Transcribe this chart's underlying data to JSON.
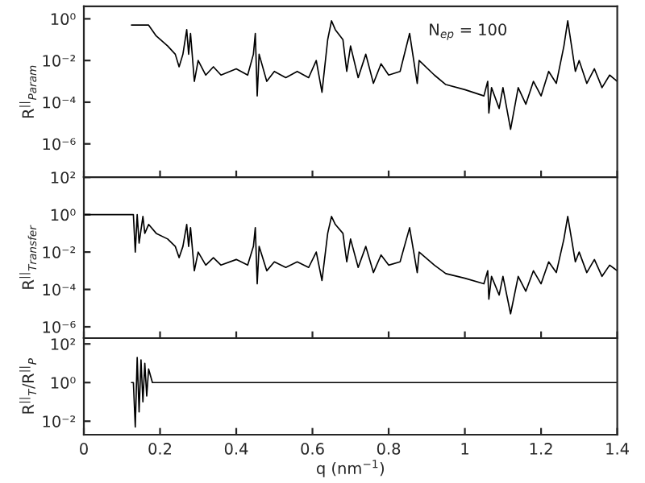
{
  "chart_data": [
    {
      "type": "line",
      "ylabel": "R$^{||}$$_{Param}$",
      "annotations": [
        "N$_{ep}$ = 100"
      ],
      "log": true,
      "tick_labels": "y",
      "xlim": [
        0,
        1.4
      ],
      "xticks": [
        0,
        0.2,
        0.4,
        0.6,
        0.8,
        1,
        1.2,
        1.4
      ],
      "ylim": [
        2.5e-08,
        4
      ],
      "yticks": [
        {
          "value": 1,
          "label": "10⁰"
        },
        {
          "value": 0.01,
          "label": "10⁻²"
        },
        {
          "value": 0.0001,
          "label": "10⁻⁴"
        },
        {
          "value": 1e-06,
          "label": "10⁻⁶"
        }
      ],
      "series": [
        {
          "color": "#000000",
          "x": [
            0.125,
            0.17,
            0.19,
            0.22,
            0.24,
            0.25,
            0.26,
            0.27,
            0.275,
            0.28,
            0.29,
            0.3,
            0.32,
            0.34,
            0.36,
            0.4,
            0.43,
            0.445,
            0.45,
            0.455,
            0.46,
            0.48,
            0.5,
            0.53,
            0.56,
            0.59,
            0.61,
            0.625,
            0.64,
            0.65,
            0.66,
            0.68,
            0.69,
            0.7,
            0.72,
            0.74,
            0.76,
            0.78,
            0.8,
            0.83,
            0.855,
            0.86,
            0.875,
            0.88,
            0.92,
            0.95,
            1.0,
            1.05,
            1.06,
            1.063,
            1.07,
            1.09,
            1.1,
            1.12,
            1.14,
            1.16,
            1.18,
            1.2,
            1.22,
            1.24,
            1.26,
            1.27,
            1.28,
            1.29,
            1.3,
            1.32,
            1.34,
            1.36,
            1.38,
            1.4
          ],
          "values": [
            0.5,
            0.5,
            0.15,
            0.05,
            0.02,
            0.005,
            0.02,
            0.3,
            0.02,
            0.2,
            0.001,
            0.01,
            0.002,
            0.005,
            0.002,
            0.004,
            0.002,
            0.02,
            0.2,
            0.0002,
            0.02,
            0.001,
            0.003,
            0.0015,
            0.003,
            0.0015,
            0.01,
            0.0003,
            0.1,
            0.8,
            0.3,
            0.1,
            0.003,
            0.05,
            0.0015,
            0.02,
            0.0008,
            0.007,
            0.002,
            0.003,
            0.2,
            0.05,
            0.0008,
            0.01,
            0.002,
            0.0007,
            0.0004,
            0.0002,
            0.001,
            3e-05,
            0.0005,
            5e-05,
            0.0005,
            5e-06,
            0.0005,
            8e-05,
            0.001,
            0.0002,
            0.003,
            0.0008,
            0.05,
            0.8,
            0.05,
            0.003,
            0.01,
            0.0008,
            0.004,
            0.0005,
            0.002,
            0.001
          ]
        }
      ]
    },
    {
      "type": "line",
      "ylabel": "R$^{||}$$_{Transfer}$",
      "log": true,
      "tick_labels": "y",
      "xlim": [
        0,
        1.4
      ],
      "xticks": [
        0,
        0.2,
        0.4,
        0.6,
        0.8,
        1,
        1.2,
        1.4
      ],
      "ylim": [
        2.5e-07,
        100
      ],
      "yticks": [
        {
          "value": 100,
          "label": "10²"
        },
        {
          "value": 1,
          "label": "10⁰"
        },
        {
          "value": 0.01,
          "label": "10⁻²"
        },
        {
          "value": 0.0001,
          "label": "10⁻⁴"
        },
        {
          "value": 1e-06,
          "label": "10⁻⁶"
        }
      ],
      "series": [
        {
          "color": "#000000",
          "x": [
            0,
            0.13,
            0.135,
            0.14,
            0.145,
            0.155,
            0.16,
            0.17,
            0.19,
            0.22,
            0.24,
            0.25,
            0.26,
            0.27,
            0.275,
            0.28,
            0.29,
            0.3,
            0.32,
            0.34,
            0.36,
            0.4,
            0.43,
            0.445,
            0.45,
            0.455,
            0.46,
            0.48,
            0.5,
            0.53,
            0.56,
            0.59,
            0.61,
            0.625,
            0.64,
            0.65,
            0.66,
            0.68,
            0.69,
            0.7,
            0.72,
            0.74,
            0.76,
            0.78,
            0.8,
            0.83,
            0.855,
            0.86,
            0.875,
            0.88,
            0.92,
            0.95,
            1.0,
            1.05,
            1.06,
            1.063,
            1.07,
            1.09,
            1.1,
            1.12,
            1.14,
            1.16,
            1.18,
            1.2,
            1.22,
            1.24,
            1.26,
            1.27,
            1.28,
            1.29,
            1.3,
            1.32,
            1.34,
            1.36,
            1.38,
            1.4
          ],
          "values": [
            1,
            1,
            0.01,
            1,
            0.03,
            0.8,
            0.1,
            0.3,
            0.1,
            0.05,
            0.02,
            0.005,
            0.02,
            0.3,
            0.02,
            0.2,
            0.001,
            0.01,
            0.002,
            0.005,
            0.002,
            0.004,
            0.002,
            0.02,
            0.2,
            0.0002,
            0.02,
            0.001,
            0.003,
            0.0015,
            0.003,
            0.0015,
            0.01,
            0.0003,
            0.1,
            0.8,
            0.3,
            0.1,
            0.003,
            0.05,
            0.0015,
            0.02,
            0.0008,
            0.007,
            0.002,
            0.003,
            0.2,
            0.05,
            0.0008,
            0.01,
            0.002,
            0.0007,
            0.0004,
            0.0002,
            0.001,
            3e-05,
            0.0005,
            5e-05,
            0.0005,
            5e-06,
            0.0005,
            8e-05,
            0.001,
            0.0002,
            0.003,
            0.0008,
            0.05,
            0.8,
            0.05,
            0.003,
            0.01,
            0.0008,
            0.004,
            0.0005,
            0.002,
            0.001
          ]
        }
      ]
    },
    {
      "type": "line",
      "ylabel": "R$^{||}$$_{T}$/R$^{||}$$_{P}$",
      "xlabel": "q (nm$^{−1}$)",
      "log": true,
      "xlim": [
        0,
        1.4
      ],
      "xticks": [
        0,
        0.2,
        0.4,
        0.6,
        0.8,
        1,
        1.2,
        1.4
      ],
      "ylim": [
        0.002,
        200
      ],
      "yticks": [
        {
          "value": 100,
          "label": "10²"
        },
        {
          "value": 1,
          "label": "10⁰"
        },
        {
          "value": 0.01,
          "label": "10⁻²"
        }
      ],
      "series": [
        {
          "color": "#000000",
          "x": [
            0.125,
            0.13,
            0.135,
            0.14,
            0.145,
            0.15,
            0.155,
            0.16,
            0.165,
            0.17,
            0.18,
            1.4
          ],
          "values": [
            1,
            1,
            0.005,
            20,
            0.03,
            15,
            0.1,
            10,
            0.2,
            5,
            1,
            1
          ]
        }
      ]
    }
  ]
}
